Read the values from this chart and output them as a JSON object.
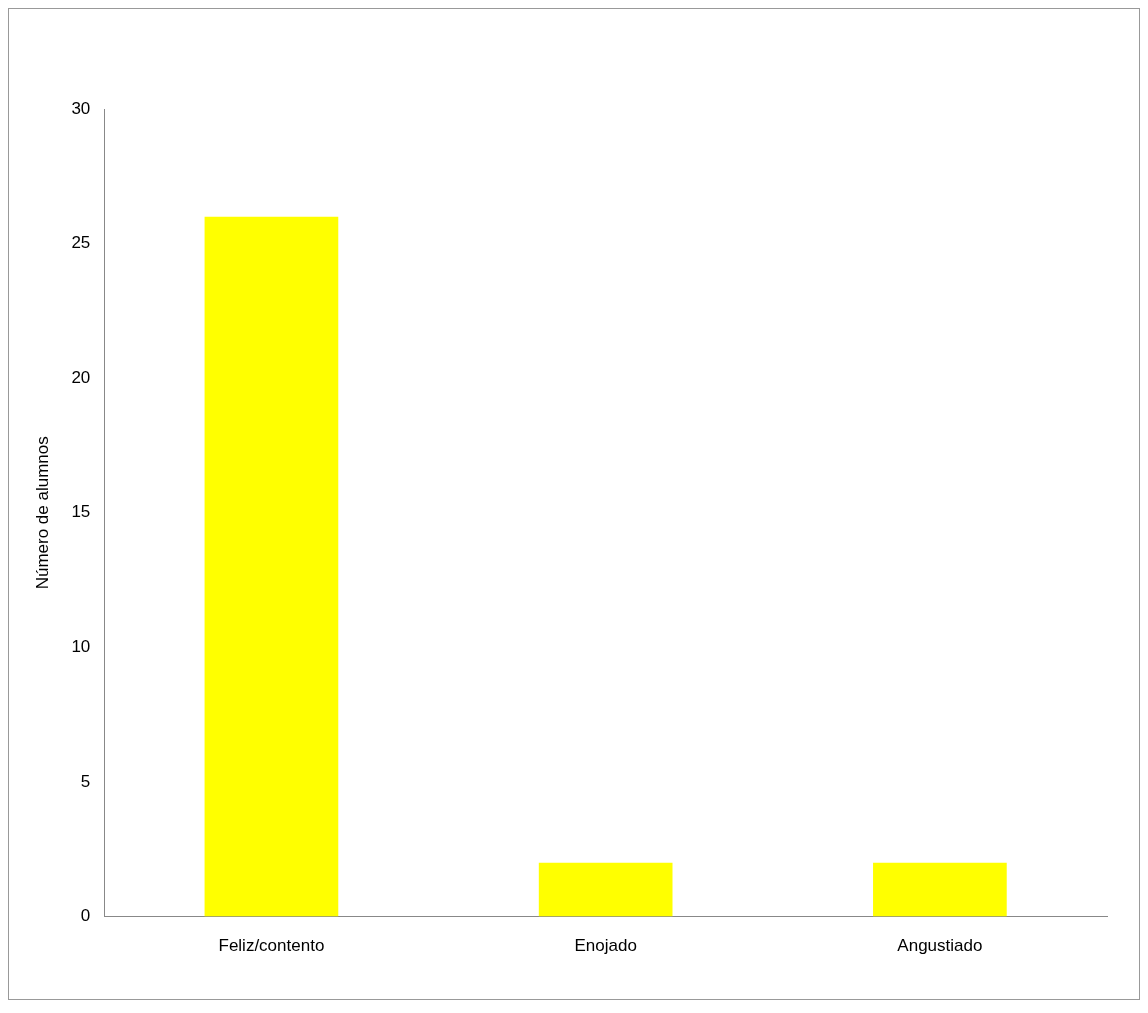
{
  "chart_data": {
    "type": "bar",
    "ylabel": "Número de alumnos",
    "categories": [
      "Feliz/contento",
      "Enojado",
      "Angustiado"
    ],
    "values": [
      26,
      2,
      2
    ],
    "color": "#ffff00",
    "ylim": [
      0,
      30
    ],
    "yticks": [
      0,
      5,
      10,
      15,
      20,
      25,
      30
    ],
    "grid": false,
    "legend": false
  }
}
